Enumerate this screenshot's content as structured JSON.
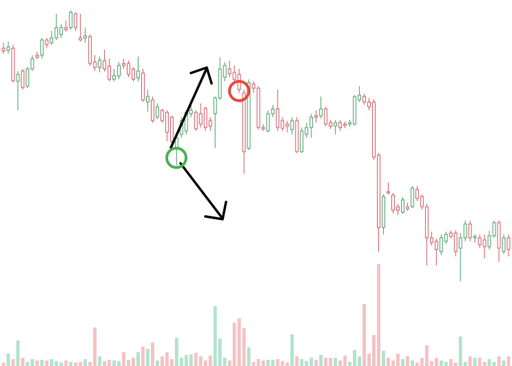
{
  "chart_data": {
    "type": "candlestick",
    "ylim": [
      0,
      531
    ],
    "y2lim": [
      0,
      531
    ],
    "up_color": "#3d9b5f",
    "down_color": "#d0505a",
    "volume_up_color": "#b2e2cd",
    "volume_down_color": "#f4c2c4",
    "open": [
      461,
      458,
      461,
      413,
      428,
      406,
      431,
      451,
      451,
      473,
      469,
      476,
      481,
      491,
      491,
      511,
      476,
      476,
      478,
      441,
      433,
      443,
      435,
      416,
      421,
      439,
      439,
      431,
      418,
      425,
      383,
      386,
      361,
      371,
      368,
      361,
      316,
      336,
      341,
      366,
      368,
      366,
      374,
      356,
      366,
      389,
      419,
      431,
      426,
      423,
      396,
      316,
      409,
      403,
      346,
      341,
      366,
      373,
      356,
      351,
      343,
      356,
      311,
      336,
      346,
      363,
      363,
      373,
      353,
      348,
      353,
      351,
      351,
      351,
      386,
      391,
      383,
      383,
      306,
      201,
      253,
      248,
      231,
      223,
      231,
      231,
      256,
      246,
      231,
      186,
      181,
      166,
      181,
      193,
      193,
      171,
      186,
      206,
      186,
      186,
      183,
      173,
      189,
      208,
      166,
      186
    ],
    "high": [
      469,
      471,
      466,
      428,
      431,
      434,
      451,
      456,
      476,
      476,
      486,
      511,
      496,
      501,
      516,
      513,
      511,
      491,
      481,
      451,
      449,
      459,
      446,
      431,
      441,
      446,
      443,
      433,
      449,
      431,
      401,
      391,
      381,
      373,
      371,
      363,
      336,
      361,
      371,
      381,
      371,
      381,
      376,
      361,
      391,
      448,
      441,
      443,
      436,
      431,
      401,
      416,
      413,
      406,
      351,
      371,
      379,
      401,
      361,
      356,
      361,
      361,
      346,
      353,
      366,
      371,
      391,
      376,
      357,
      357,
      357,
      355,
      357,
      393,
      406,
      395,
      389,
      387,
      309,
      249,
      266,
      251,
      235,
      245,
      237,
      261,
      261,
      249,
      235,
      195,
      185,
      191,
      195,
      197,
      197,
      193,
      211,
      211,
      191,
      191,
      191,
      196,
      211,
      211,
      191,
      191
    ],
    "low": [
      453,
      453,
      411,
      371,
      401,
      403,
      428,
      445,
      446,
      461,
      466,
      473,
      476,
      485,
      488,
      486,
      471,
      469,
      435,
      428,
      426,
      427,
      413,
      413,
      416,
      431,
      419,
      413,
      413,
      383,
      369,
      353,
      358,
      353,
      326,
      316,
      291,
      331,
      336,
      361,
      341,
      346,
      341,
      341,
      316,
      386,
      413,
      419,
      411,
      396,
      279,
      313,
      396,
      343,
      341,
      339,
      361,
      341,
      341,
      339,
      336,
      309,
      309,
      331,
      331,
      353,
      359,
      348,
      344,
      336,
      341,
      345,
      347,
      349,
      383,
      379,
      371,
      299,
      166,
      191,
      249,
      221,
      219,
      221,
      225,
      229,
      239,
      227,
      146,
      175,
      146,
      161,
      177,
      185,
      159,
      123,
      181,
      181,
      179,
      171,
      156,
      169,
      186,
      151,
      163,
      159
    ],
    "close": [
      457,
      463,
      414,
      423,
      404,
      431,
      446,
      448,
      473,
      466,
      476,
      491,
      491,
      488,
      513,
      491,
      473,
      479,
      439,
      433,
      444,
      431,
      416,
      421,
      436,
      436,
      423,
      416,
      428,
      386,
      391,
      356,
      376,
      356,
      339,
      326,
      331,
      356,
      368,
      371,
      344,
      351,
      346,
      348,
      389,
      431,
      436,
      424,
      416,
      401,
      311,
      411,
      403,
      346,
      344,
      366,
      373,
      346,
      345,
      348,
      356,
      311,
      341,
      346,
      361,
      361,
      373,
      351,
      348,
      353,
      346,
      349,
      353,
      391,
      393,
      383,
      376,
      303,
      201,
      246,
      251,
      226,
      226,
      241,
      228,
      258,
      243,
      231,
      186,
      179,
      169,
      186,
      191,
      188,
      166,
      186,
      206,
      186,
      188,
      176,
      173,
      189,
      208,
      171,
      186,
      169
    ],
    "volume": [
      5,
      18,
      10,
      37,
      12,
      6,
      10,
      8,
      9,
      8,
      10,
      7,
      5,
      8,
      6,
      5,
      6,
      10,
      6,
      56,
      14,
      7,
      9,
      8,
      7,
      20,
      9,
      12,
      20,
      28,
      25,
      34,
      8,
      14,
      20,
      10,
      41,
      12,
      16,
      17,
      19,
      14,
      8,
      15,
      87,
      40,
      12,
      8,
      63,
      69,
      55,
      27,
      6,
      10,
      8,
      9,
      9,
      10,
      7,
      5,
      46,
      14,
      10,
      7,
      12,
      9,
      16,
      12,
      12,
      12,
      8,
      15,
      6,
      23,
      14,
      90,
      18,
      45,
      148,
      22,
      12,
      8,
      18,
      10,
      14,
      8,
      5,
      12,
      30,
      7,
      12,
      8,
      6,
      10,
      5,
      43,
      6,
      14,
      12,
      12,
      6,
      10,
      6,
      14,
      8,
      14
    ]
  }
}
